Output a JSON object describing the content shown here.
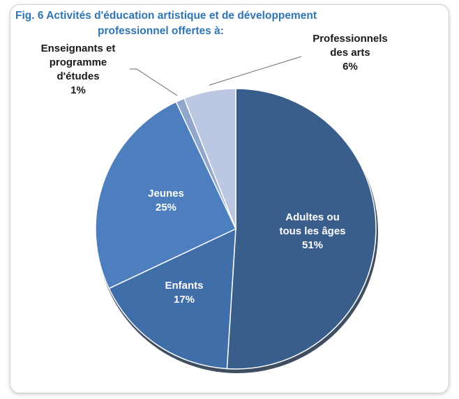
{
  "chart_data": {
    "type": "pie",
    "title_line1": "Fig. 6 Activités d'éducation artistique et de développement",
    "title_line2": "professionnel offertes à:",
    "start_angle_deg": 0,
    "direction": "clockwise",
    "slices": [
      {
        "label_lines": [
          "Adultes ou",
          "tous les âges"
        ],
        "value": 51,
        "value_text": "51%",
        "color": "#3a5e8c",
        "label_color": "#ffffff"
      },
      {
        "label_lines": [
          "Enfants"
        ],
        "value": 17,
        "value_text": "17%",
        "color": "#3f6ea8",
        "label_color": "#ffffff"
      },
      {
        "label_lines": [
          "Jeunes"
        ],
        "value": 25,
        "value_text": "25%",
        "color": "#4d7fbf",
        "label_color": "#ffffff"
      },
      {
        "label_lines": [
          "Enseignants et",
          "programme",
          "d'études"
        ],
        "value": 1,
        "value_text": "1%",
        "color": "#90a6cd",
        "label_color": "#1a1a1a"
      },
      {
        "label_lines": [
          "Professionnels",
          "des arts"
        ],
        "value": 6,
        "value_text": "6%",
        "color": "#bcc7e1",
        "label_color": "#1a1a1a"
      }
    ]
  }
}
